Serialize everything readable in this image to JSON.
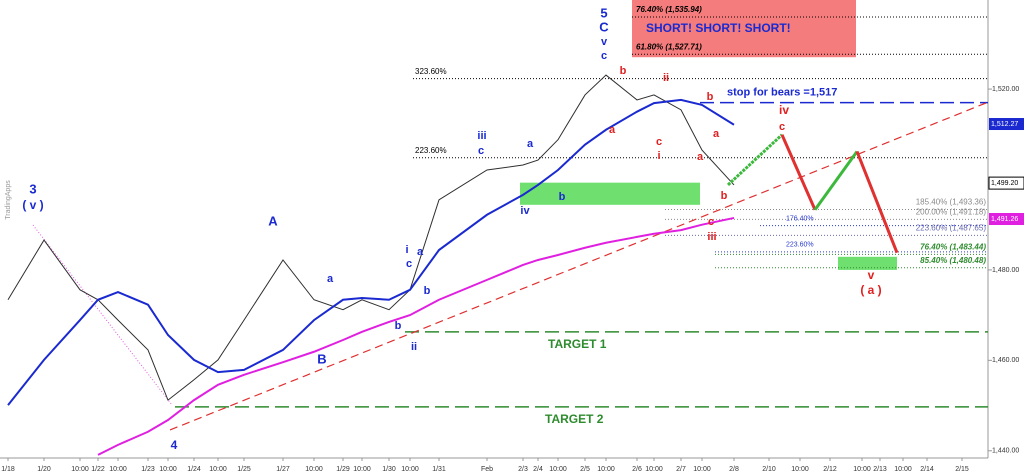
{
  "chart_data": {
    "type": "line",
    "watermark": "TradingApps",
    "categories": [
      "1/18",
      "1/20",
      "10:00",
      "1/22",
      "10:00",
      "1/23",
      "10:00",
      "1/24",
      "10:00",
      "1/25",
      "1/27",
      "10:00",
      "1/29",
      "10:00",
      "1/30",
      "10:00",
      "1/31",
      "Feb",
      "2/3",
      "2/4",
      "10:00",
      "2/5",
      "10:00",
      "2/6",
      "10:00",
      "2/7",
      "10:00",
      "2/8",
      "2/10",
      "10:00",
      "2/12",
      "10:00",
      "2/13",
      "10:00",
      "2/14",
      "2/15"
    ],
    "series": [
      {
        "color": "#2f2f2f",
        "values": [
          1473.4,
          1486.6,
          1475.6,
          1473.4,
          1468.9,
          1462.3,
          1451.2,
          1455.7,
          1460.1,
          1468.9,
          1482.2,
          1473.4,
          1471.2,
          1473.4,
          1471.2,
          1475.6,
          1495.5,
          1502.1,
          1503.2,
          1504.3,
          1508.8,
          1518.7,
          1523.1,
          1517.6,
          1518.7,
          1515.4,
          1506.5,
          1498.8,
          null,
          null,
          null,
          null,
          null,
          null,
          null,
          null
        ]
      },
      {
        "color": "#1a2ad0",
        "values": [
          1450.1,
          1460.1,
          1468.9,
          1473.4,
          1475.1,
          1472.3,
          1465.6,
          1460.1,
          1457.4,
          1457.9,
          1462.3,
          1468.9,
          1473.4,
          1473.8,
          1473.4,
          1475.6,
          1484.4,
          1492.2,
          1496.6,
          1498.8,
          1502.1,
          1507.7,
          1511.0,
          1515.0,
          1516.9,
          1517.6,
          1516.5,
          1512.1,
          null,
          null,
          null,
          null,
          null,
          null,
          null,
          null
        ]
      },
      {
        "color": "#e020e0",
        "values": [
          null,
          null,
          null,
          1439.1,
          1441.3,
          1444.2,
          1446.8,
          1451.2,
          1454.6,
          1456.8,
          1459.6,
          1461.9,
          1464.5,
          1466.3,
          1468.5,
          1470.0,
          1473.4,
          1477.8,
          1481.1,
          1482.2,
          1483.3,
          1484.9,
          1486.0,
          1487.3,
          1488.0,
          1488.8,
          1490.0,
          1491.5,
          null,
          null,
          null,
          null,
          null,
          null,
          null,
          null
        ]
      }
    ],
    "ylim": [
      1438.4,
      1539.7
    ],
    "yticks": [
      {
        "value": 1440,
        "label": "1,440.00"
      },
      {
        "value": 1460,
        "label": "1,460.00"
      },
      {
        "value": 1480,
        "label": "1,480.00"
      },
      {
        "value": 1520,
        "label": "1,520.00"
      }
    ],
    "price_tags": [
      {
        "value": 1512.27,
        "label": "1,512.27",
        "background": "#1a2ad0",
        "text_color": "#ffffff"
      },
      {
        "value": 1499.2,
        "label": "1,499.20",
        "background": "#ffffff",
        "text_color": "#000000"
      },
      {
        "value": 1491.26,
        "label": "1,491.26",
        "background": "#e020e0",
        "text_color": "#ffffff"
      }
    ],
    "levels": [
      {
        "label": "76.40% (1,535.94)",
        "value": 1535.94,
        "color": "#000000"
      },
      {
        "label": "61.80% (1,527.71)",
        "value": 1527.71,
        "color": "#000000"
      },
      {
        "label": "323.60%",
        "value": 1522.3,
        "color": "#000000"
      },
      {
        "label": "223.60%",
        "value": 1504.8,
        "color": "#000000"
      },
      {
        "label": "185.40% (1,493.36)",
        "value": 1493.36,
        "color": "#8a8a8a"
      },
      {
        "label": "200.00% (1,491.18)",
        "value": 1491.18,
        "color": "#8a8a8a"
      },
      {
        "label": "176.40%",
        "value": 1489.8,
        "color": "#2a3ad0"
      },
      {
        "label": "223.60% (1,487.65)",
        "value": 1487.65,
        "color": "#6a6ab0"
      },
      {
        "label": "223.60%",
        "value": 1484.0,
        "color": "#2a3ad0"
      },
      {
        "label": "76.40% (1,483.44)",
        "value": 1483.44,
        "color": "#2e8b2e"
      },
      {
        "label": "85.40% (1,480.48)",
        "value": 1480.48,
        "color": "#2e8b2e"
      }
    ],
    "short_box": {
      "text": "SHORT! SHORT! SHORT!",
      "color": "#f47c7c",
      "text_color": "#1a2ad0"
    },
    "zones": [
      {
        "low": 1494.4,
        "high": 1499.3,
        "color": "#6fe06f"
      },
      {
        "low": 1480.0,
        "high": 1482.9,
        "color": "#6fe06f"
      }
    ],
    "lines": [
      {
        "label": "stop for bears =1,517",
        "value": 1517,
        "color": "#1a2ad0"
      },
      {
        "label": "TARGET 1",
        "value": 1466.3,
        "color": "#2e8b2e"
      },
      {
        "label": "TARGET 2",
        "value": 1449.7,
        "color": "#2e8b2e"
      }
    ],
    "trendline": {
      "values": [
        1444.6,
        1517.1
      ],
      "color": "#e03030"
    },
    "projection": {
      "values": [
        1498.8,
        1509.9,
        1493.3,
        1506.2,
        1483.8
      ],
      "segment_colors": [
        "#3cb83c",
        "#e03030",
        "#3cb83c",
        "#e03030"
      ]
    },
    "annotations": [
      {
        "text": "3",
        "color": "#1a2ad0"
      },
      {
        "text": "( v )",
        "color": "#1a2ad0"
      },
      {
        "text": "4",
        "color": "#1a2ad0"
      },
      {
        "text": "A",
        "color": "#1a2ad0"
      },
      {
        "text": "a",
        "color": "#1a2ad0"
      },
      {
        "text": "B",
        "color": "#1a2ad0"
      },
      {
        "text": "b",
        "color": "#1a2ad0"
      },
      {
        "text": "ii",
        "color": "#1a2ad0"
      },
      {
        "text": "i",
        "color": "#1a2ad0"
      },
      {
        "text": "c",
        "color": "#1a2ad0"
      },
      {
        "text": "a",
        "color": "#1a2ad0"
      },
      {
        "text": "b",
        "color": "#1a2ad0"
      },
      {
        "text": "iii",
        "color": "#1a2ad0"
      },
      {
        "text": "c",
        "color": "#1a2ad0"
      },
      {
        "text": "iv",
        "color": "#1a2ad0"
      },
      {
        "text": "b",
        "color": "#1a2ad0"
      },
      {
        "text": "a",
        "color": "#1a2ad0"
      },
      {
        "text": "5",
        "color": "#1a2ad0"
      },
      {
        "text": "C",
        "color": "#1a2ad0"
      },
      {
        "text": "v",
        "color": "#1a2ad0"
      },
      {
        "text": "c",
        "color": "#1a2ad0"
      },
      {
        "text": "b",
        "color": "#e02020"
      },
      {
        "text": "a",
        "color": "#e02020"
      },
      {
        "text": "ii",
        "color": "#e02020"
      },
      {
        "text": "c",
        "color": "#e02020"
      },
      {
        "text": "i",
        "color": "#e02020"
      },
      {
        "text": "b",
        "color": "#e02020"
      },
      {
        "text": "a",
        "color": "#e02020"
      },
      {
        "text": "a",
        "color": "#e02020"
      },
      {
        "text": "b",
        "color": "#e02020"
      },
      {
        "text": "c",
        "color": "#e02020"
      },
      {
        "text": "iii",
        "color": "#e02020"
      },
      {
        "text": "iv",
        "color": "#e02020"
      },
      {
        "text": "c",
        "color": "#e02020"
      },
      {
        "text": "v",
        "color": "#e02020"
      },
      {
        "text": "( a )",
        "color": "#e02020"
      }
    ]
  }
}
